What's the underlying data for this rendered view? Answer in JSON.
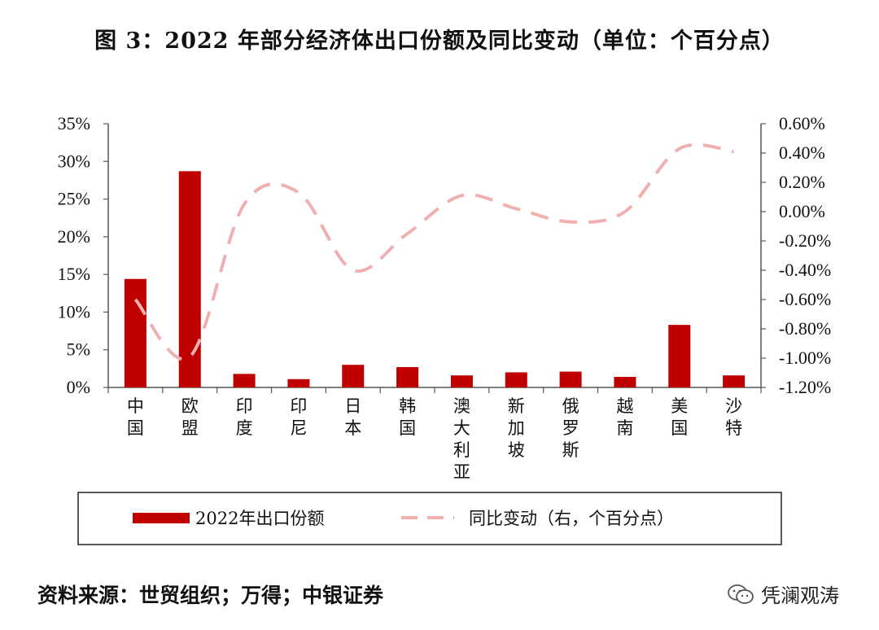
{
  "title": "图 3：2022 年部分经济体出口份额及同比变动（单位：个百分点）",
  "source": "资料来源：世贸组织；万得；中银证券",
  "watermark": "凭澜观涛",
  "colors": {
    "bar": "#c00000",
    "line": "#f0b0b0",
    "axis": "#555555"
  },
  "chart_data": {
    "type": "bar",
    "categories": [
      [
        "中",
        "国"
      ],
      [
        "欧",
        "盟"
      ],
      [
        "印",
        "度"
      ],
      [
        "印",
        "尼"
      ],
      [
        "日",
        "本"
      ],
      [
        "韩",
        "国"
      ],
      [
        "澳",
        "大",
        "利",
        "亚"
      ],
      [
        "新",
        "加",
        "坡"
      ],
      [
        "俄",
        "罗",
        "斯"
      ],
      [
        "越",
        "南"
      ],
      [
        "美",
        "国"
      ],
      [
        "沙",
        "特"
      ]
    ],
    "series": [
      {
        "name": "2022年出口份额",
        "type": "bar",
        "axis": "left",
        "values": [
          14.4,
          28.7,
          1.8,
          1.1,
          3.0,
          2.7,
          1.6,
          2.0,
          2.1,
          1.4,
          8.3,
          1.6
        ]
      },
      {
        "name": "同比变动（右，个百分点）",
        "type": "line",
        "style": "dashed",
        "axis": "right",
        "values": [
          -0.6,
          -0.99,
          0.05,
          0.13,
          -0.4,
          -0.15,
          0.11,
          0.02,
          -0.07,
          0.0,
          0.43,
          0.41
        ]
      }
    ],
    "y_left": {
      "min": 0,
      "max": 35,
      "step": 5,
      "tick_labels": [
        "0%",
        "5%",
        "10%",
        "15%",
        "20%",
        "25%",
        "30%",
        "35%"
      ]
    },
    "y_right": {
      "min": -1.2,
      "max": 0.6,
      "step": 0.2,
      "tick_labels": [
        "-1.20%",
        "-1.00%",
        "-0.80%",
        "-0.60%",
        "-0.40%",
        "-0.20%",
        "0.00%",
        "0.20%",
        "0.40%",
        "0.60%"
      ]
    },
    "legend_position": "bottom",
    "grid": false
  }
}
